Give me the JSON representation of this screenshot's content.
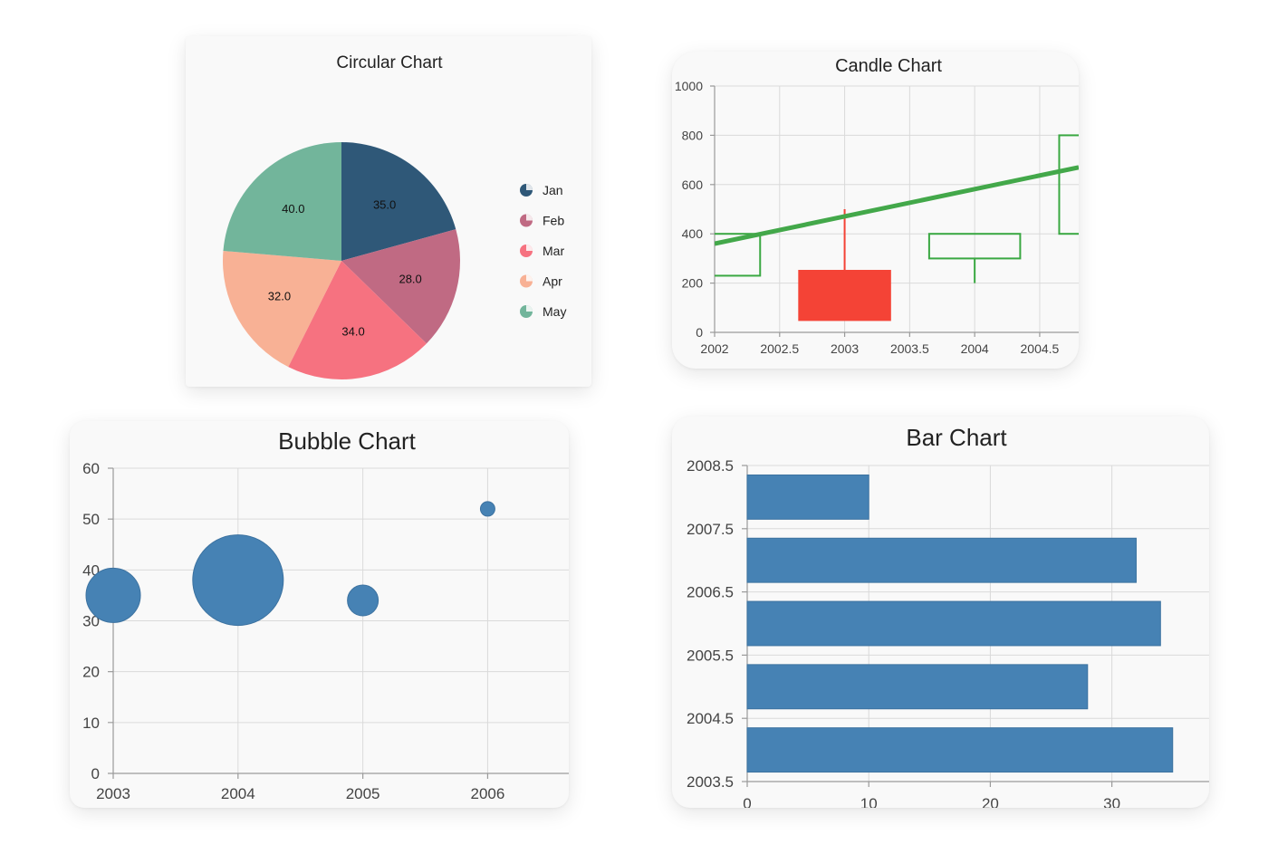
{
  "chart_data": [
    {
      "type": "pie",
      "title": "Circular Chart",
      "categories": [
        "Jan",
        "Feb",
        "Mar",
        "Apr",
        "May"
      ],
      "values": [
        35.0,
        28.0,
        34.0,
        32.0,
        40.0
      ],
      "value_labels": [
        "35.0",
        "28.0",
        "34.0",
        "32.0",
        "40.0"
      ],
      "colors": [
        "#2f5878",
        "#c06a83",
        "#f67280",
        "#f8b195",
        "#72b59b"
      ],
      "legend": "right"
    },
    {
      "type": "candlestick",
      "title": "Candle Chart",
      "xlim": [
        2002,
        2004.8
      ],
      "ylim": [
        0,
        1000
      ],
      "x_ticks": [
        "2002",
        "2002.5",
        "2003",
        "2003.5",
        "2004",
        "2004.5"
      ],
      "y_ticks": [
        "0",
        "200",
        "400",
        "600",
        "800",
        "1000"
      ],
      "candles": [
        {
          "x": 2002,
          "open": 230,
          "close": 400,
          "high": 400,
          "low": 230
        },
        {
          "x": 2003,
          "open": 250,
          "close": 50,
          "high": 500,
          "low": 50
        },
        {
          "x": 2004,
          "open": 300,
          "close": 400,
          "high": 400,
          "low": 200
        },
        {
          "x": 2005,
          "open": 400,
          "close": 800,
          "high": 800,
          "low": 400
        }
      ],
      "trendline": [
        {
          "x": 2002,
          "y": 360
        },
        {
          "x": 2004.8,
          "y": 670
        }
      ],
      "up_color": "#3aa842",
      "down_color": "#f44336",
      "grid": true
    },
    {
      "type": "scatter",
      "subtype": "bubble",
      "title": "Bubble Chart",
      "xlim": [
        2003,
        2006.65
      ],
      "ylim": [
        0,
        60
      ],
      "x_ticks": [
        "2003",
        "2004",
        "2005",
        "2006"
      ],
      "y_ticks": [
        "0",
        "10",
        "20",
        "30",
        "40",
        "50",
        "60"
      ],
      "points": [
        {
          "x": 2003,
          "y": 35,
          "size": 30
        },
        {
          "x": 2004,
          "y": 38,
          "size": 50
        },
        {
          "x": 2005,
          "y": 34,
          "size": 17
        },
        {
          "x": 2006,
          "y": 52,
          "size": 8
        }
      ],
      "color": "#4682b4",
      "grid": true
    },
    {
      "type": "bar",
      "orientation": "horizontal",
      "title": "Bar Chart",
      "xlim": [
        0,
        38
      ],
      "ylim": [
        2003.5,
        2008.5
      ],
      "x_ticks": [
        "0",
        "10",
        "20",
        "30"
      ],
      "y_ticks": [
        "2003.5",
        "2004.5",
        "2005.5",
        "2006.5",
        "2007.5",
        "2008.5"
      ],
      "categories": [
        2004,
        2005,
        2006,
        2007,
        2008
      ],
      "values": [
        35,
        28,
        34,
        32,
        10
      ],
      "color": "#4682b4",
      "grid": true
    }
  ]
}
